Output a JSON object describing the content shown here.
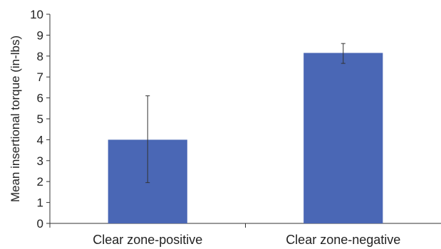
{
  "chart_data": {
    "type": "bar",
    "title": "",
    "xlabel": "",
    "ylabel": "Mean insertional torque (in-lbs)",
    "categories": [
      "Clear zone-positive",
      "Clear zone-negative"
    ],
    "values": [
      4.0,
      8.15
    ],
    "error_low": [
      1.95,
      7.65
    ],
    "error_high": [
      6.1,
      8.6
    ],
    "ylim": [
      0,
      10
    ],
    "yticks": [
      0,
      1,
      2,
      3,
      4,
      5,
      6,
      7,
      8,
      9,
      10
    ],
    "grid": false,
    "legend": "none",
    "bar_color": "#4a67b5"
  }
}
